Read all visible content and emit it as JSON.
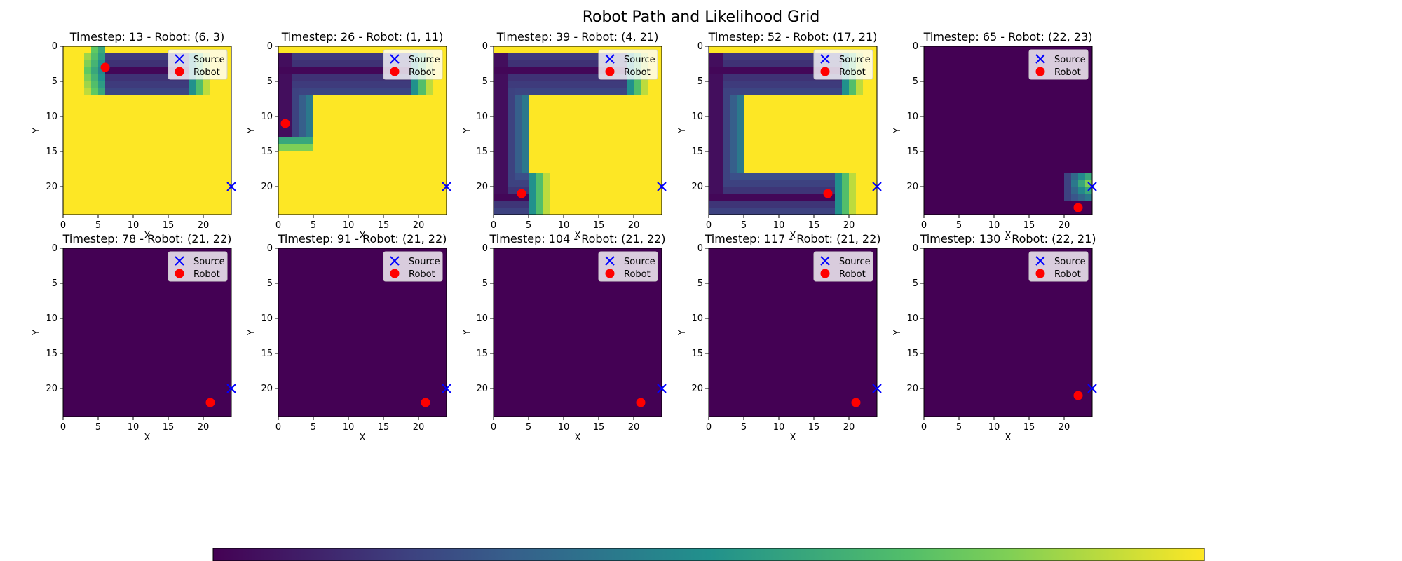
{
  "figure": {
    "title": "Robot Path and Likelihood Grid"
  },
  "chart_data": {
    "type": "heatmap",
    "grid_size": [
      24,
      24
    ],
    "x_ticks": [
      0,
      5,
      10,
      15,
      20
    ],
    "y_ticks": [
      0,
      5,
      10,
      15,
      20
    ],
    "xlabel": "X",
    "ylabel": "Y",
    "source": [
      24,
      20
    ],
    "legend": {
      "placement": "top-right",
      "source_label": "Source",
      "robot_label": "Robot"
    },
    "colors": {
      "source": "#0000ff",
      "robot": "#ff0000",
      "low": "#440154",
      "high": "#fde725"
    },
    "colormap": "viridis",
    "colorbar_ticks": 6,
    "panels": [
      {
        "title": "Timestep: 13 - Robot: (6, 3)",
        "robot": [
          6,
          3
        ],
        "stage": 1
      },
      {
        "title": "Timestep: 26 - Robot: (1, 11)",
        "robot": [
          1,
          11
        ],
        "stage": 2
      },
      {
        "title": "Timestep: 39 - Robot: (4, 21)",
        "robot": [
          4,
          21
        ],
        "stage": 3
      },
      {
        "title": "Timestep: 52 - Robot: (17, 21)",
        "robot": [
          17,
          21
        ],
        "stage": 4
      },
      {
        "title": "Timestep: 65 - Robot: (22, 23)",
        "robot": [
          22,
          23
        ],
        "stage": 5
      },
      {
        "title": "Timestep: 78 - Robot: (21, 22)",
        "robot": [
          21,
          22
        ],
        "stage": 6
      },
      {
        "title": "Timestep: 91 - Robot: (21, 22)",
        "robot": [
          21,
          22
        ],
        "stage": 6
      },
      {
        "title": "Timestep: 104 - Robot: (21, 22)",
        "robot": [
          21,
          22
        ],
        "stage": 6
      },
      {
        "title": "Timestep: 117 - Robot: (21, 22)",
        "robot": [
          21,
          22
        ],
        "stage": 6
      },
      {
        "title": "Timestep: 130 - Robot: (22, 21)",
        "robot": [
          22,
          21
        ],
        "stage": 6
      }
    ]
  }
}
